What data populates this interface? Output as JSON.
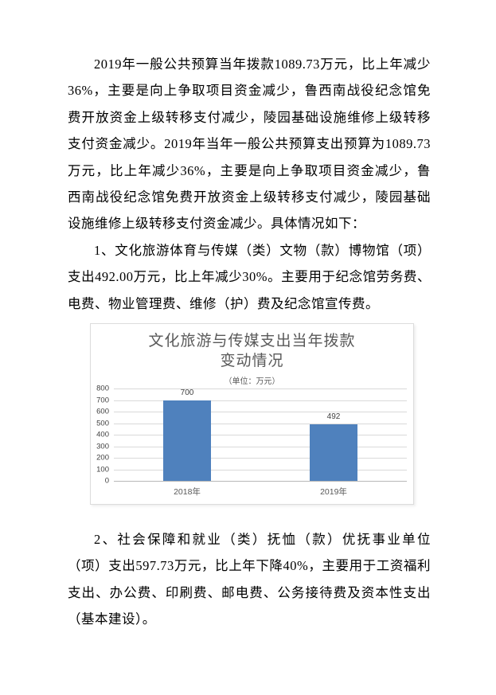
{
  "page": {
    "background": "#ffffff",
    "text_color": "#000000"
  },
  "document": {
    "paragraphs": [
      "2019年一般公共预算当年拨款1089.73万元，比上年减少36%，主要是向上争取项目资金减少，鲁西南战役纪念馆免费开放资金上级转移支付减少，陵园基础设施维修上级转移支付资金减少。2019年当年一般公共预算支出预算为1089.73万元，比上年减少36%，主要是向上争取项目资金减少，鲁西南战役纪念馆免费开放资金上级转移支付减少，陵园基础设施维修上级转移支付资金减少。具体情况如下：",
      "1、文化旅游体育与传媒（类）文物（款）博物馆（项）支出492.00万元，比上年减少30%。主要用于纪念馆劳务费、电费、物业管理费、维修（护）费及纪念馆宣传费。",
      "2、社会保障和就业（类）抚恤（款）优抚事业单位（项）支出597.73万元，比上年下降40%，主要用于工资福利支出、办公费、印刷费、邮电费、公务接待费及资本性支出（基本建设）。"
    ]
  },
  "chart_data": {
    "type": "bar",
    "title": "文化旅游与传媒支出当年拨款变动情况",
    "title_lines": [
      "文化旅游与传媒支出当年拨款",
      "变动情况"
    ],
    "subtitle": "（单位：万元）",
    "categories": [
      "2018年",
      "2019年"
    ],
    "values": [
      700,
      492
    ],
    "xlabel": "",
    "ylabel": "",
    "ylim": [
      0,
      800
    ],
    "ytick_step": 100,
    "yticks": [
      0,
      100,
      200,
      300,
      400,
      500,
      600,
      700,
      800
    ],
    "grid": true,
    "legend": "none",
    "bar_color": "#4f81bd",
    "gridline_color": "#d9d9d9",
    "axis_label_color": "#404040",
    "title_color": "#595959"
  }
}
